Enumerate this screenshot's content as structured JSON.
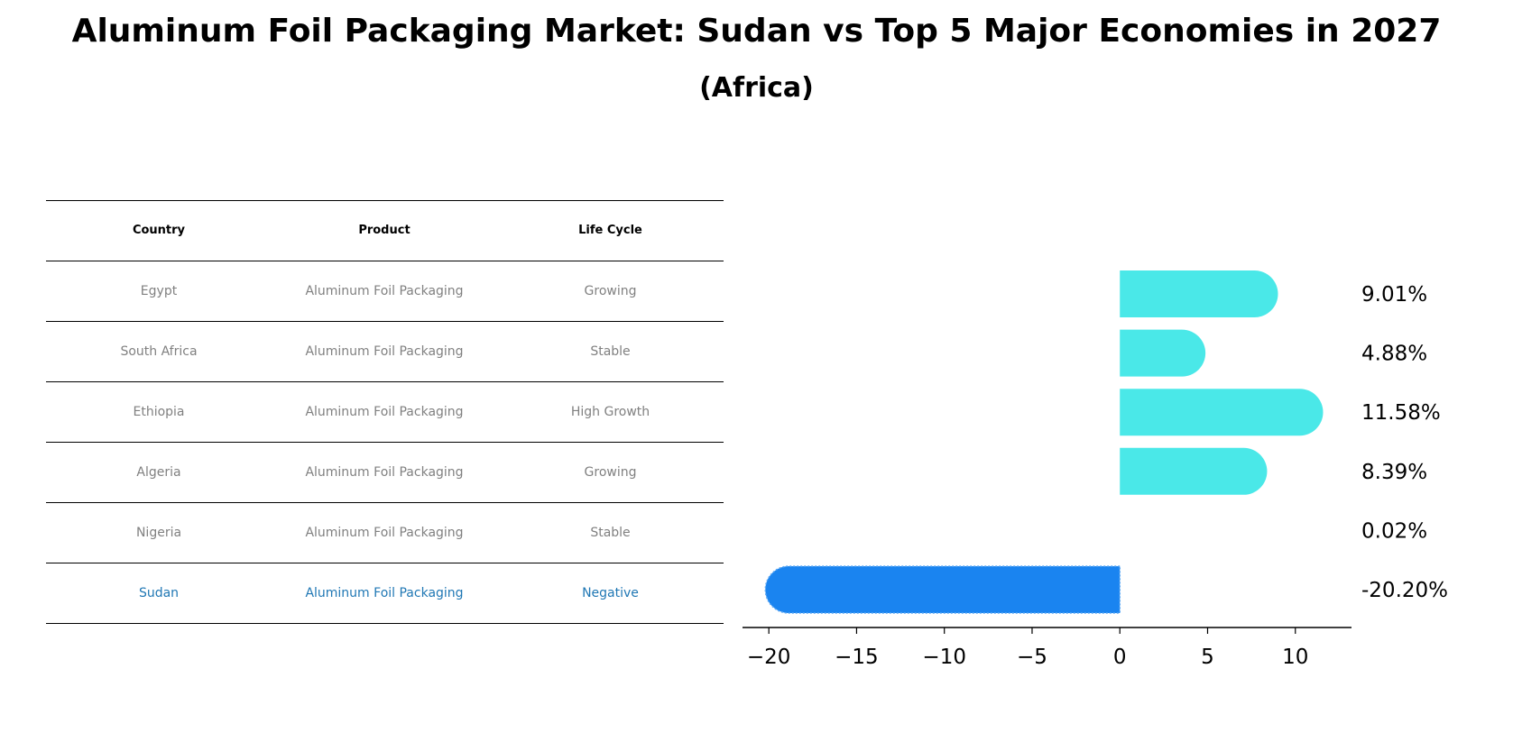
{
  "title": "Aluminum Foil Packaging Market: Sudan vs Top 5 Major Economies in 2027",
  "subtitle": "(Africa)",
  "colors": {
    "bar_positive": "#4ae8e8",
    "bar_focus": "#1a84f0",
    "highlight_text": "#1f77b4",
    "muted_text": "#808080"
  },
  "table": {
    "headers": [
      "Country",
      "Product",
      "Life Cycle"
    ],
    "rows": [
      [
        "Egypt",
        "Aluminum Foil Packaging",
        "Growing"
      ],
      [
        "South Africa",
        "Aluminum Foil Packaging",
        "Stable"
      ],
      [
        "Ethiopia",
        "Aluminum Foil Packaging",
        "High Growth"
      ],
      [
        "Algeria",
        "Aluminum Foil Packaging",
        "Growing"
      ],
      [
        "Nigeria",
        "Aluminum Foil Packaging",
        "Stable"
      ],
      [
        "Sudan",
        "Aluminum Foil Packaging",
        "Negative"
      ]
    ]
  },
  "chart_data": {
    "type": "bar",
    "orientation": "horizontal",
    "categories": [
      "Egypt",
      "South Africa",
      "Ethiopia",
      "Algeria",
      "Nigeria",
      "Sudan"
    ],
    "values": [
      9.01,
      4.88,
      11.58,
      8.39,
      0.02,
      -20.2
    ],
    "value_labels": [
      "9.01%",
      "4.88%",
      "11.58%",
      "8.39%",
      "0.02%",
      "-20.20%"
    ],
    "highlight": "Sudan",
    "xlim": [
      -21.5,
      13.2
    ],
    "xticks": [
      -20,
      -15,
      -10,
      -5,
      0,
      5,
      10
    ],
    "xtick_labels": [
      "−20",
      "−15",
      "−10",
      "−5",
      "0",
      "5",
      "10"
    ],
    "grid": false
  }
}
